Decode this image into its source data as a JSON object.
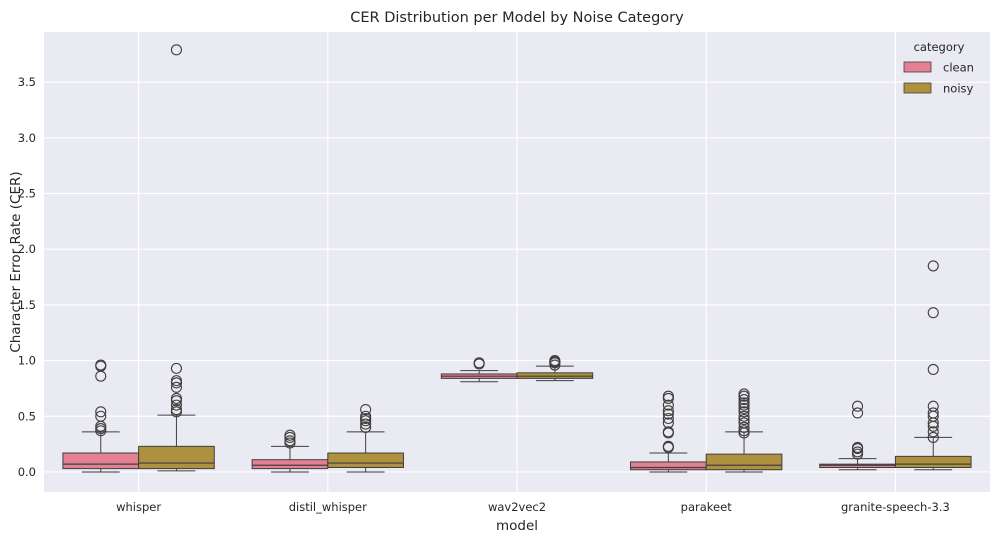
{
  "chart_data": {
    "type": "box",
    "title": "CER Distribution per Model by Noise Category",
    "xlabel": "model",
    "ylabel": "Character Error Rate (CER)",
    "ylim": [
      -0.18,
      3.95
    ],
    "yticks": [
      0.0,
      0.5,
      1.0,
      1.5,
      2.0,
      2.5,
      3.0,
      3.5
    ],
    "ytick_labels": [
      "0.0",
      "0.5",
      "1.0",
      "1.5",
      "2.0",
      "2.5",
      "3.0",
      "3.5"
    ],
    "grid": true,
    "legend": {
      "title": "category",
      "position": "top-right"
    },
    "categories": [
      "whisper",
      "distil_whisper",
      "wav2vec2",
      "parakeet",
      "granite-speech-3.3"
    ],
    "series": [
      {
        "name": "clean",
        "color": "#e48093",
        "boxes": [
          {
            "whislo": 0.0,
            "q1": 0.03,
            "med": 0.07,
            "q3": 0.17,
            "whishi": 0.36,
            "fliers": [
              0.37,
              0.39,
              0.41,
              0.5,
              0.54,
              0.86,
              0.95,
              0.96
            ]
          },
          {
            "whislo": 0.0,
            "q1": 0.03,
            "med": 0.06,
            "q3": 0.11,
            "whishi": 0.23,
            "fliers": [
              0.26,
              0.28,
              0.31,
              0.33
            ]
          },
          {
            "whislo": 0.81,
            "q1": 0.84,
            "med": 0.86,
            "q3": 0.88,
            "whishi": 0.91,
            "fliers": [
              0.97,
              0.98
            ]
          },
          {
            "whislo": 0.0,
            "q1": 0.02,
            "med": 0.04,
            "q3": 0.09,
            "whishi": 0.17,
            "fliers": [
              0.22,
              0.23,
              0.35,
              0.36,
              0.44,
              0.48,
              0.52,
              0.55,
              0.6,
              0.66,
              0.68
            ]
          },
          {
            "whislo": 0.02,
            "q1": 0.04,
            "med": 0.06,
            "q3": 0.07,
            "whishi": 0.12,
            "fliers": [
              0.16,
              0.18,
              0.21,
              0.22,
              0.53,
              0.59
            ]
          }
        ]
      },
      {
        "name": "noisy",
        "color": "#ae913f",
        "boxes": [
          {
            "whislo": 0.01,
            "q1": 0.03,
            "med": 0.08,
            "q3": 0.23,
            "whishi": 0.51,
            "fliers": [
              0.54,
              0.56,
              0.6,
              0.64,
              0.66,
              0.76,
              0.8,
              0.82,
              0.93,
              3.79
            ]
          },
          {
            "whislo": 0.0,
            "q1": 0.04,
            "med": 0.08,
            "q3": 0.17,
            "whishi": 0.36,
            "fliers": [
              0.4,
              0.43,
              0.46,
              0.48,
              0.5,
              0.56
            ]
          },
          {
            "whislo": 0.82,
            "q1": 0.84,
            "med": 0.86,
            "q3": 0.89,
            "whishi": 0.95,
            "fliers": [
              0.96,
              0.98,
              0.99,
              1.0
            ]
          },
          {
            "whislo": 0.0,
            "q1": 0.02,
            "med": 0.06,
            "q3": 0.16,
            "whishi": 0.36,
            "fliers": [
              0.35,
              0.37,
              0.4,
              0.44,
              0.47,
              0.5,
              0.54,
              0.57,
              0.6,
              0.62,
              0.65,
              0.68,
              0.7
            ]
          },
          {
            "whislo": 0.02,
            "q1": 0.04,
            "med": 0.07,
            "q3": 0.14,
            "whishi": 0.31,
            "fliers": [
              0.31,
              0.36,
              0.41,
              0.44,
              0.5,
              0.53,
              0.59,
              0.92,
              1.43,
              1.85
            ]
          }
        ]
      }
    ]
  }
}
